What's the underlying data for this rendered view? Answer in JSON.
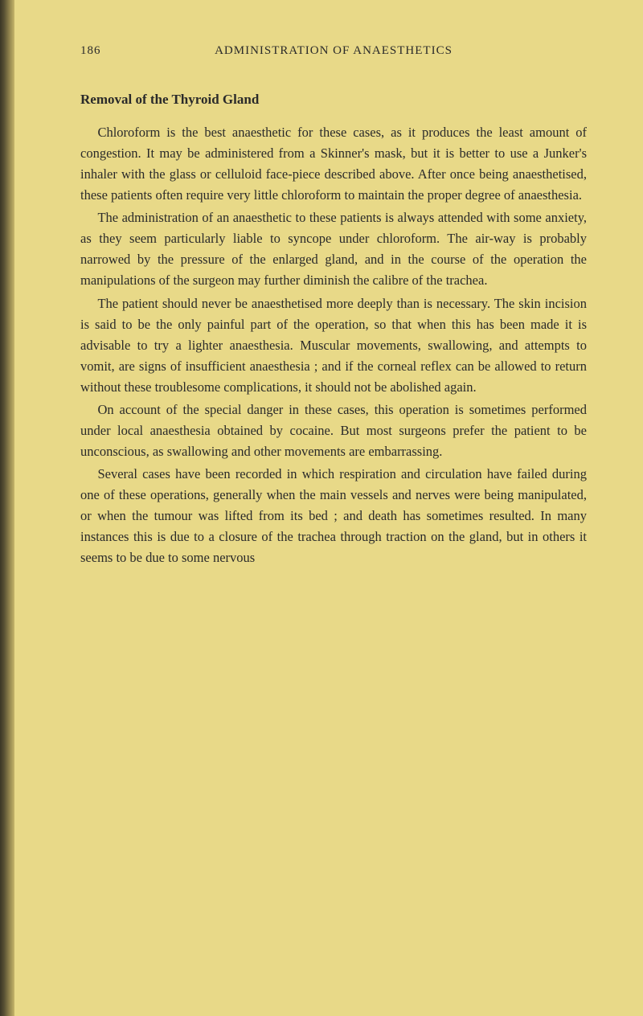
{
  "colors": {
    "background": "#e8d988",
    "text": "#2a2a2a",
    "binding_dark": "#3a3525",
    "binding_light": "#c5b56a"
  },
  "typography": {
    "body_fontsize": 16.5,
    "title_fontsize": 17,
    "header_fontsize": 15,
    "line_height": 1.58,
    "font_family": "Georgia, serif"
  },
  "header": {
    "page_number": "186",
    "running_title": "ADMINISTRATION OF ANAESTHETICS"
  },
  "section_title": "Removal of the Thyroid Gland",
  "paragraphs": [
    "Chloroform is the best anaesthetic for these cases, as it produces the least amount of congestion. It may be administered from a Skinner's mask, but it is better to use a Junker's inhaler with the glass or celluloid face-piece described above. After once being anaesthetised, these patients often require very little chloroform to maintain the proper degree of anaesthesia.",
    "The administration of an anaesthetic to these patients is always attended with some anxiety, as they seem particularly liable to syncope under chloroform. The air-way is probably narrowed by the pressure of the enlarged gland, and in the course of the operation the manipulations of the surgeon may further diminish the calibre of the trachea.",
    "The patient should never be anaesthetised more deeply than is necessary. The skin incision is said to be the only painful part of the operation, so that when this has been made it is advisable to try a lighter anaesthesia. Muscular movements, swallowing, and attempts to vomit, are signs of insufficient anaesthesia ; and if the corneal reflex can be allowed to return without these troublesome complications, it should not be abolished again.",
    "On account of the special danger in these cases, this operation is sometimes performed under local anaesthesia obtained by cocaine. But most surgeons prefer the patient to be unconscious, as swallowing and other movements are embarrassing.",
    "Several cases have been recorded in which respiration and circulation have failed during one of these operations, generally when the main vessels and nerves were being manipulated, or when the tumour was lifted from its bed ; and death has sometimes resulted. In many instances this is due to a closure of the trachea through traction on the gland, but in others it seems to be due to some nervous"
  ]
}
